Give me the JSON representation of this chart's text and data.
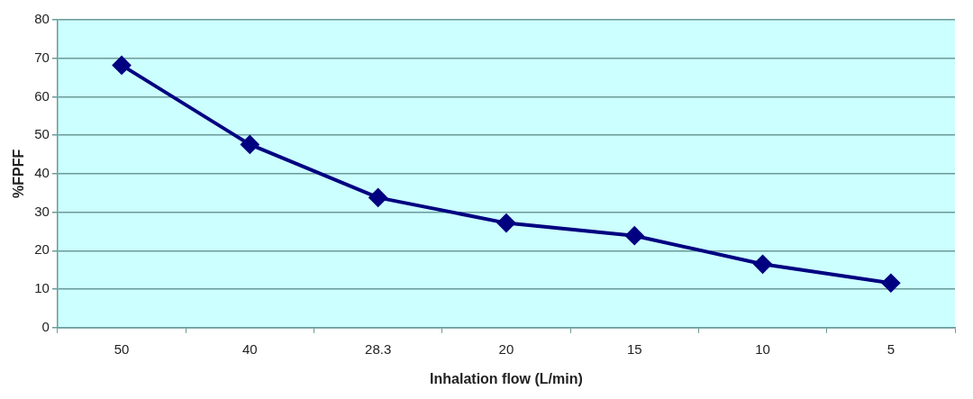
{
  "chart_data": {
    "type": "line",
    "xlabel": "Inhalation flow (L/min)",
    "ylabel": "%FPFF",
    "categories": [
      "50",
      "40",
      "28.3",
      "20",
      "15",
      "10",
      "5"
    ],
    "series": [
      {
        "color": "#000080",
        "values": [
          68.2,
          47.6,
          33.8,
          27.2,
          23.9,
          16.5,
          11.6
        ]
      }
    ],
    "ylim": [
      0,
      80
    ],
    "yticks": [
      0,
      10,
      20,
      30,
      40,
      50,
      60,
      70,
      80
    ],
    "grid": "y",
    "legend": false,
    "marker": "diamond",
    "line_style": "solid"
  }
}
